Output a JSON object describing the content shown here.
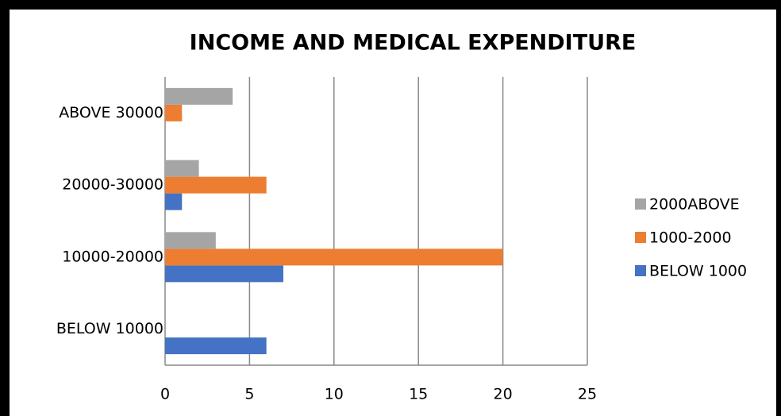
{
  "chart_data": {
    "type": "hbar",
    "title": "INCOME AND MEDICAL EXPENDITURE",
    "categories": [
      "BELOW 10000",
      "10000-20000",
      "20000-30000",
      "ABOVE 30000"
    ],
    "series": [
      {
        "name": "BELOW 1000",
        "color": "#4472c4",
        "values": [
          6,
          7,
          1,
          0
        ]
      },
      {
        "name": "1000-2000",
        "color": "#ed7d31",
        "values": [
          0,
          20,
          6,
          1
        ]
      },
      {
        "name": "2000ABOVE",
        "color": "#a5a5a5",
        "values": [
          0,
          3,
          2,
          4
        ]
      }
    ],
    "xlim": [
      0,
      25
    ],
    "xticks": [
      0,
      5,
      10,
      15,
      20,
      25
    ],
    "grid": true,
    "legend": "right"
  }
}
